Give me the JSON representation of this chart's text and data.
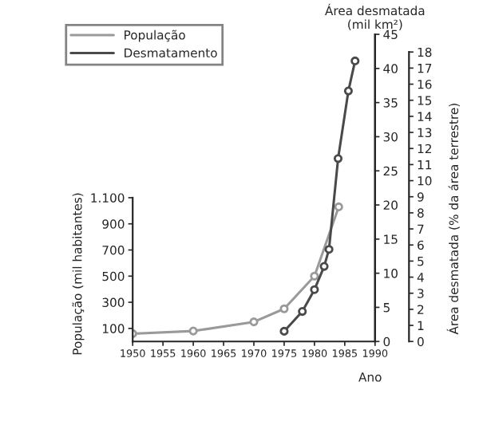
{
  "chart_data": {
    "type": "line",
    "xlabel": "Ano",
    "ylabel": "População (mil habitantes)",
    "y2label": "Área desmatada\n(mil km²)",
    "y3label": "Área desmatada (% da área terrestre)",
    "series": [
      {
        "name": "População",
        "color": "#9a9a9a",
        "axis": "y",
        "x": [
          1950,
          1960,
          1970,
          1975,
          1980,
          1984
        ],
        "values": [
          60,
          80,
          150,
          250,
          500,
          1030
        ]
      },
      {
        "name": "Desmatamento",
        "color": "#4a4a4a",
        "axis": "y2",
        "x": [
          1975,
          1978,
          1980,
          1981.6,
          1982.4,
          1983.9,
          1985.6,
          1986.7
        ],
        "values": [
          1.5,
          4.4,
          7.6,
          11,
          13.5,
          26.8,
          36.7,
          41.1
        ]
      }
    ],
    "xlim": [
      1950,
      1990
    ],
    "xticks": [
      1950,
      1955,
      1960,
      1965,
      1970,
      1975,
      1980,
      1985,
      1990
    ],
    "ylim": [
      0,
      2350
    ],
    "yticks": [
      100,
      300,
      500,
      700,
      900,
      {
        "value": 1100,
        "label": "1.100"
      }
    ],
    "y2lim": [
      0,
      45
    ],
    "y2ticks": [
      0,
      5,
      10,
      15,
      20,
      25,
      30,
      35,
      40,
      45
    ],
    "y3lim": [
      0,
      19.1
    ],
    "y3ticks": [
      0,
      1,
      2,
      3,
      4,
      5,
      6,
      7,
      8,
      9,
      10,
      11,
      12,
      13,
      14,
      15,
      16,
      17,
      18
    ],
    "marker": "circle",
    "line_style": "solid",
    "legend": "top left",
    "grid": false
  }
}
